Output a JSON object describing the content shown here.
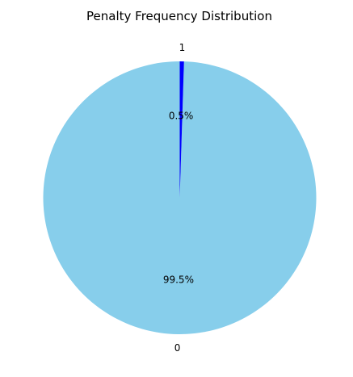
{
  "chart_data": {
    "type": "pie",
    "title": "Penalty Frequency Distribution",
    "categories": [
      "0",
      "1"
    ],
    "values": [
      99.5,
      0.5
    ],
    "percent_labels": [
      "99.5%",
      "0.5%"
    ],
    "colors": [
      "#87ceeb",
      "#0000ff"
    ],
    "start_angle_deg": 90,
    "direction": "counterclockwise",
    "legend": "none"
  }
}
